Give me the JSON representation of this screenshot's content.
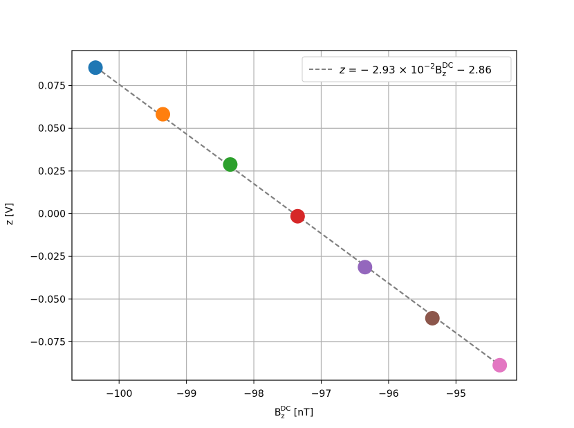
{
  "chart_data": {
    "type": "scatter",
    "title": "",
    "xlabel": {
      "base": "B",
      "sub": "z",
      "sup": "DC",
      "unit": " [nT]"
    },
    "ylabel": "z [V]",
    "xlim": [
      -100.7,
      -94.1
    ],
    "ylim": [
      -0.0975,
      0.0955
    ],
    "grid": true,
    "x_ticks": [
      -100,
      -99,
      -98,
      -97,
      -96,
      -95
    ],
    "x_tick_labels": [
      "−100",
      "−99",
      "−98",
      "−97",
      "−96",
      "−95"
    ],
    "y_ticks": [
      0.075,
      0.05,
      0.025,
      0.0,
      -0.025,
      -0.05,
      -0.075
    ],
    "y_tick_labels": [
      "0.075",
      "0.050",
      "0.025",
      "0.000",
      "−0.025",
      "−0.050",
      "−0.075"
    ],
    "points": [
      {
        "x": -100.35,
        "y": 0.0855,
        "color": "#1f77b4"
      },
      {
        "x": -99.35,
        "y": 0.0582,
        "color": "#ff7f0e"
      },
      {
        "x": -98.35,
        "y": 0.0288,
        "color": "#2ca02c"
      },
      {
        "x": -97.35,
        "y": -0.0015,
        "color": "#d62728"
      },
      {
        "x": -96.35,
        "y": -0.0313,
        "color": "#9467bd"
      },
      {
        "x": -95.35,
        "y": -0.0612,
        "color": "#8c564b"
      },
      {
        "x": -94.35,
        "y": -0.0887,
        "color": "#e377c2"
      }
    ],
    "fit_line": {
      "slope": -0.0293,
      "intercept": -2.86,
      "x_range": [
        -100.35,
        -94.35
      ],
      "y_range": [
        0.0859,
        -0.0887
      ],
      "color": "#808080",
      "style": "dashed"
    },
    "legend": {
      "placement": "top-right",
      "parts": {
        "lhs": "z",
        "eq": " = − 2.93 × 10",
        "exp": "−2",
        "b": "B",
        "sub": "z",
        "sup": "DC",
        "tail": " − 2.86"
      }
    }
  }
}
